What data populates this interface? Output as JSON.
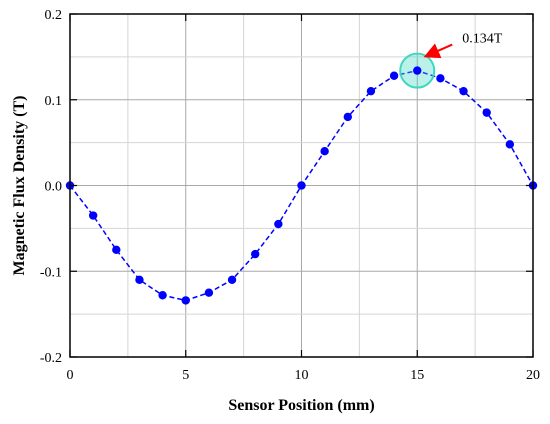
{
  "chart_data": {
    "type": "line",
    "title": "",
    "xlabel": "Sensor Position (mm)",
    "ylabel": "Magnetic Flux Density (T)",
    "xlim": [
      0,
      20
    ],
    "ylim": [
      -0.2,
      0.2
    ],
    "x_ticks": [
      0,
      5,
      10,
      15,
      20
    ],
    "x_tick_labels": [
      "0",
      "5",
      "10",
      "15",
      "20"
    ],
    "y_ticks": [
      -0.2,
      -0.1,
      0.0,
      0.1,
      0.2
    ],
    "y_tick_labels": [
      "-0.2",
      "-0.1",
      "0.0",
      "0.1",
      "0.2"
    ],
    "grid": true,
    "series": [
      {
        "color": "#0000ff",
        "marker": "circle",
        "line_style": "dashed",
        "x": [
          0,
          1,
          2,
          3,
          4,
          5,
          6,
          7,
          8,
          9,
          10,
          11,
          12,
          13,
          14,
          15,
          16,
          17,
          18,
          19,
          20
        ],
        "y": [
          0.0,
          -0.035,
          -0.075,
          -0.11,
          -0.128,
          -0.134,
          -0.125,
          -0.11,
          -0.08,
          -0.045,
          0.0,
          0.04,
          0.08,
          0.11,
          0.128,
          0.134,
          0.125,
          0.11,
          0.085,
          0.048,
          0.0
        ]
      }
    ],
    "annotations": [
      {
        "text": "0.134T",
        "x": 15,
        "y": 0.134,
        "highlight_color": "#3fd7c0",
        "arrow_color": "#ff0000"
      }
    ]
  }
}
